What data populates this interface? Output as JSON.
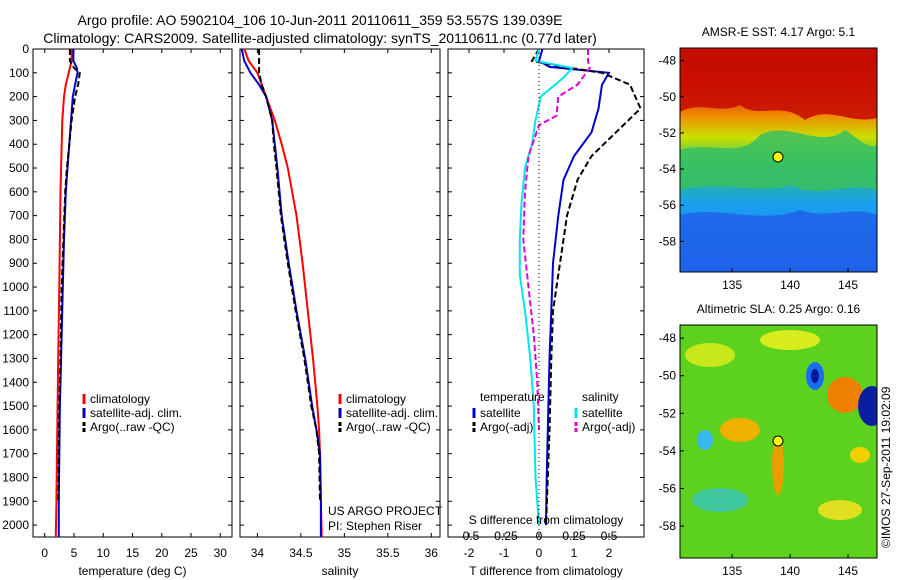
{
  "header": {
    "line1": "Argo profile: AO 5902104_106 10-Jun-2011 20110611_359 53.557S 139.039E",
    "line2": "Climatology: CARS2009. Satellite-adjusted climatology: synTS_20110611.nc (0.77d later)"
  },
  "colors": {
    "climatology": "#ff0000",
    "satellite_adj": "#0000cc",
    "argo": "#000000",
    "salinity_satellite": "#00e5ee",
    "salinity_argo": "#dd00dd"
  },
  "chart_data": [
    {
      "type": "line",
      "panel": "temperature",
      "xlabel": "temperature (deg C)",
      "ylabel": "",
      "xlim": [
        -2,
        32
      ],
      "ylim": [
        2050,
        0
      ],
      "xticks": [
        0,
        5,
        10,
        15,
        20,
        25,
        30
      ],
      "yticks": [
        0,
        100,
        200,
        300,
        400,
        500,
        600,
        700,
        800,
        900,
        1000,
        1100,
        1200,
        1300,
        1400,
        1500,
        1600,
        1700,
        1800,
        1900,
        2000
      ],
      "legend": [
        "climatology",
        "satellite-adj. clim.",
        "Argo(..raw -QC)"
      ],
      "series": [
        {
          "name": "climatology",
          "color": "#ff0000",
          "dash": "",
          "x": [
            4.6,
            4.6,
            4.1,
            3.6,
            3.3,
            3.0,
            2.9,
            2.7,
            2.6,
            2.5,
            2.3,
            2.2,
            2.1,
            2.0,
            1.9
          ],
          "y": [
            0,
            50,
            100,
            150,
            200,
            300,
            400,
            600,
            800,
            1000,
            1300,
            1500,
            1700,
            1900,
            2050
          ]
        },
        {
          "name": "satellite-adj. clim.",
          "color": "#0000cc",
          "dash": "",
          "x": [
            4.9,
            4.9,
            5.5,
            5.6,
            5.2,
            4.8,
            4.5,
            4.2,
            3.9,
            3.6,
            3.3,
            3.1,
            2.8,
            2.6,
            2.5,
            2.4,
            2.4
          ],
          "y": [
            0,
            50,
            80,
            100,
            150,
            200,
            300,
            400,
            500,
            600,
            800,
            1000,
            1300,
            1500,
            1700,
            1900,
            2050
          ]
        },
        {
          "name": "Argo(..raw -QC)",
          "color": "#000000",
          "dash": "6,3",
          "x": [
            4.3,
            4.3,
            5.0,
            6.0,
            5.7,
            5.2,
            4.6,
            4.2,
            3.8,
            3.5,
            3.2,
            2.9,
            2.7,
            2.5,
            2.4,
            2.35
          ],
          "y": [
            0,
            50,
            80,
            100,
            150,
            200,
            300,
            400,
            500,
            600,
            800,
            1000,
            1300,
            1500,
            1700,
            1900
          ]
        }
      ]
    },
    {
      "type": "line",
      "panel": "salinity",
      "xlabel": "salinity",
      "ylabel": "",
      "xlim": [
        33.8,
        36.1
      ],
      "ylim": [
        2050,
        0
      ],
      "xticks": [
        34,
        34.5,
        35,
        35.5,
        36
      ],
      "xticklabels": [
        "34",
        "34.5",
        "35",
        "35.5",
        "36"
      ],
      "legend": [
        "climatology",
        "satellite-adj. clim.",
        "Argo(..raw -QC)"
      ],
      "annotations": [
        "US ARGO PROJECT",
        "PI: Stephen Riser"
      ],
      "series": [
        {
          "name": "climatology",
          "color": "#ff0000",
          "dash": "",
          "x": [
            33.85,
            33.9,
            34.0,
            34.1,
            34.2,
            34.28,
            34.35,
            34.45,
            34.52,
            34.58,
            34.64,
            34.69,
            34.71,
            34.72,
            34.73,
            34.74
          ],
          "y": [
            0,
            50,
            100,
            200,
            300,
            400,
            500,
            700,
            900,
            1100,
            1300,
            1500,
            1600,
            1700,
            1900,
            2050
          ]
        },
        {
          "name": "satellite-adj. clim.",
          "color": "#0000cc",
          "dash": "",
          "x": [
            33.82,
            33.85,
            33.92,
            34.02,
            34.1,
            34.17,
            34.2,
            34.23,
            34.28,
            34.36,
            34.45,
            34.55,
            34.63,
            34.68,
            34.72,
            34.73,
            34.73
          ],
          "y": [
            0,
            50,
            100,
            150,
            200,
            300,
            400,
            500,
            700,
            900,
            1100,
            1300,
            1500,
            1600,
            1700,
            1900,
            2050
          ]
        },
        {
          "name": "Argo(..raw -QC)",
          "color": "#000000",
          "dash": "6,3",
          "x": [
            34.02,
            34.02,
            34.02,
            34.05,
            34.1,
            34.17,
            34.19,
            34.22,
            34.27,
            34.35,
            34.44,
            34.54,
            34.62,
            34.68,
            34.71,
            34.72
          ],
          "y": [
            0,
            50,
            100,
            150,
            200,
            300,
            400,
            500,
            700,
            900,
            1100,
            1300,
            1500,
            1600,
            1700,
            1900
          ]
        }
      ]
    },
    {
      "type": "line",
      "panel": "difference",
      "xlabel": "T difference from climatology",
      "x2label": "S difference from climatology",
      "ylabel": "",
      "xlim": [
        -2.6,
        3.0
      ],
      "ylim": [
        2050,
        0
      ],
      "xticks": [
        -2,
        -1,
        0,
        1,
        2
      ],
      "x2ticks": [
        -0.5,
        -0.25,
        0,
        0.25,
        0.5
      ],
      "x2ticklabels": [
        "-0.5",
        "-0.25",
        "0",
        "0.25",
        "0.5"
      ],
      "legend_titles": [
        "temperature",
        "salinity"
      ],
      "legend": [
        "satellite",
        "Argo(-adj)",
        "satellite",
        "Argo(-adj)"
      ],
      "series": [
        {
          "name": "satellite",
          "group": "temperature",
          "color": "#0000cc",
          "dash": "",
          "x": [
            0.1,
            0.0,
            0.3,
            2.0,
            1.8,
            1.7,
            1.5,
            1.0,
            0.7,
            0.55,
            0.4,
            0.35,
            0.3,
            0.25,
            0.22,
            0.2
          ],
          "y": [
            0,
            50,
            75,
            100,
            150,
            250,
            350,
            450,
            550,
            700,
            900,
            1100,
            1300,
            1600,
            1800,
            2000
          ]
        },
        {
          "name": "Argo(-adj)",
          "group": "temperature",
          "color": "#000000",
          "dash": "6,3",
          "x": [
            0.0,
            -0.2,
            0.7,
            1.8,
            2.6,
            2.9,
            2.2,
            1.5,
            1.1,
            0.8,
            0.6,
            0.4,
            0.35,
            0.3,
            0.25,
            0.2
          ],
          "y": [
            0,
            50,
            75,
            100,
            150,
            250,
            350,
            450,
            550,
            700,
            900,
            1100,
            1300,
            1600,
            1800,
            2000
          ]
        },
        {
          "name": "satellite",
          "group": "salinity",
          "color": "#00e5ee",
          "dash": "",
          "x": [
            0.0,
            -0.1,
            0.95,
            0.7,
            0.05,
            -0.1,
            -0.2,
            -0.4,
            -0.5,
            -0.55,
            -0.55,
            -0.4,
            -0.25,
            -0.15,
            -0.1,
            0.0
          ],
          "y": [
            0,
            50,
            80,
            120,
            200,
            300,
            400,
            500,
            650,
            800,
            950,
            1100,
            1300,
            1500,
            1800,
            2000
          ]
        },
        {
          "name": "Argo(-adj)",
          "group": "salinity",
          "color": "#dd00dd",
          "dash": "6,3",
          "x": [
            1.4,
            1.4,
            1.45,
            1.1,
            0.55,
            0.5,
            0.0,
            -0.3,
            -0.4,
            -0.45,
            -0.3,
            -0.15,
            -0.05,
            0.0
          ],
          "y": [
            0,
            50,
            80,
            150,
            200,
            280,
            320,
            450,
            600,
            800,
            1000,
            1200,
            1400,
            1600
          ]
        }
      ]
    },
    {
      "type": "heatmap",
      "panel": "sst_map",
      "title": "AMSR-E SST: 4.17 Argo: 5.1",
      "xticks": [
        135,
        140,
        145
      ],
      "yticks": [
        -48,
        -50,
        -52,
        -54,
        -56,
        -58
      ],
      "xlim": [
        130.5,
        147.5
      ],
      "ylim": [
        -59.7,
        -47.3
      ],
      "marker": {
        "lon": 139.039,
        "lat": -53.557
      }
    },
    {
      "type": "heatmap",
      "panel": "sla_map",
      "title": "Altimetric SLA: 0.25 Argo: 0.16",
      "xticks": [
        135,
        140,
        145
      ],
      "yticks": [
        -48,
        -50,
        -52,
        -54,
        -56,
        -58
      ],
      "xlim": [
        130.5,
        147.5
      ],
      "ylim": [
        -59.7,
        -47.3
      ],
      "marker": {
        "lon": 139.039,
        "lat": -53.557
      }
    }
  ],
  "side_label": "©IMOS 27-Sep-2011 19:02:09"
}
